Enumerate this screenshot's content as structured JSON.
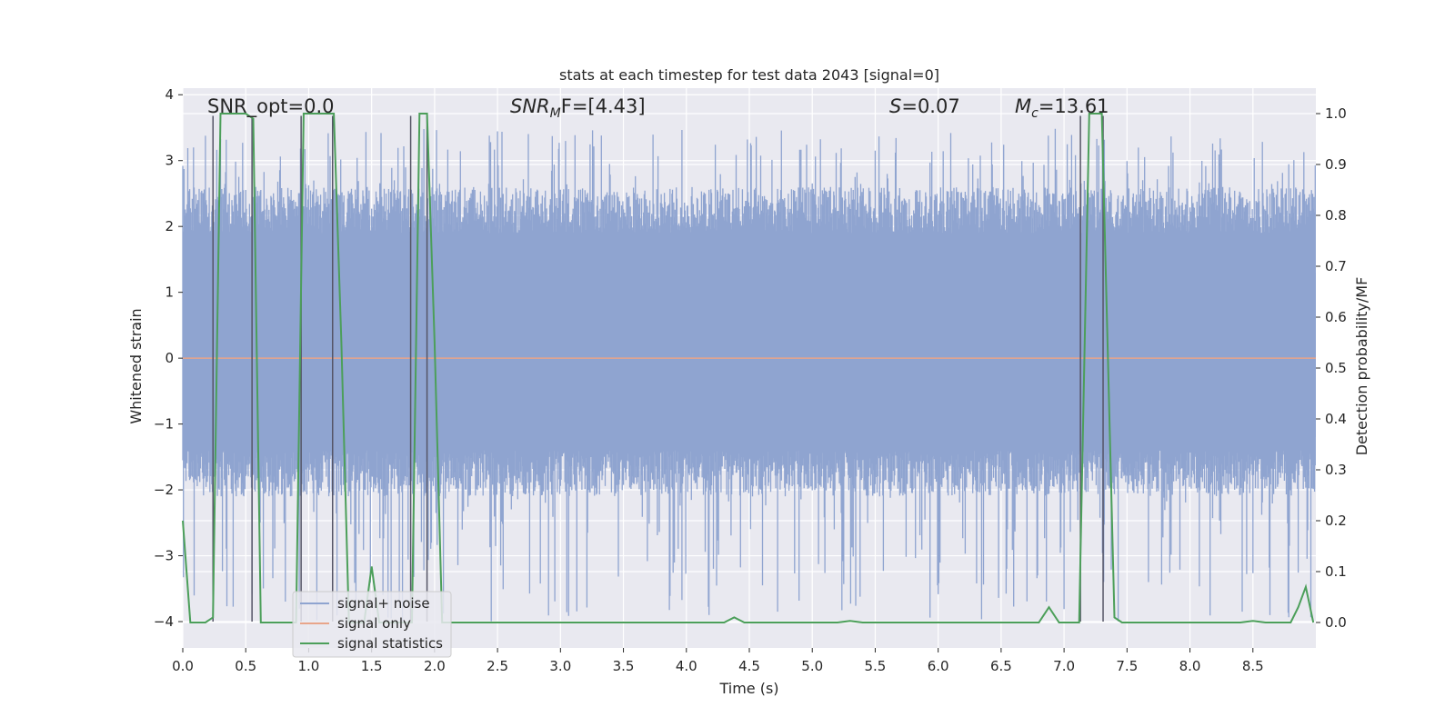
{
  "chart_data": {
    "type": "line",
    "title": "stats at each timestep for test data 2043 [signal=0]",
    "xlabel": "Time (s)",
    "ylabel_left": "Whitened strain",
    "ylabel_right": "Detection probability/MF",
    "xlim": [
      0.0,
      9.0
    ],
    "ylim_left": [
      -4.4,
      4.1
    ],
    "ylim_right": [
      -0.05,
      1.05
    ],
    "x_ticks": [
      "0.0",
      "0.5",
      "1.0",
      "1.5",
      "2.0",
      "2.5",
      "3.0",
      "3.5",
      "4.0",
      "4.5",
      "5.0",
      "5.5",
      "6.0",
      "6.5",
      "7.0",
      "7.5",
      "8.0",
      "8.5"
    ],
    "y_left_ticks": [
      "−4",
      "−3",
      "−2",
      "−1",
      "0",
      "1",
      "2",
      "3",
      "4"
    ],
    "y_right_ticks": [
      "0.0",
      "0.1",
      "0.2",
      "0.3",
      "0.4",
      "0.5",
      "0.6",
      "0.7",
      "0.8",
      "0.9",
      "1.0"
    ],
    "grid": true,
    "annotations": {
      "snr_opt": "SNR_opt=0.0",
      "snr_mf_prefix": "SNR",
      "snr_mf_sub": "M",
      "snr_mf_rest": "F=[4.43]",
      "s_prefix": "S",
      "s_rest": "=0.07",
      "mc_prefix": "M",
      "mc_sub": "c",
      "mc_rest": "=13.61"
    },
    "legend": {
      "position": "lower-left",
      "entries": [
        {
          "label": "signal+ noise",
          "color": "#8fa4d0"
        },
        {
          "label": "signal only",
          "color": "#e8a58a"
        },
        {
          "label": "signal statistics",
          "color": "#4c9f5a"
        }
      ]
    },
    "series": [
      {
        "name": "signal+ noise",
        "axis": "left",
        "style": "noise band",
        "core_range": [
          -1.7,
          2.2
        ],
        "spike_range": [
          -4.0,
          3.5
        ],
        "color": "#8fa4d0"
      },
      {
        "name": "signal only",
        "axis": "left",
        "x": [
          0.0,
          9.0
        ],
        "y": [
          0.0,
          0.0
        ],
        "color": "#e8a58a"
      },
      {
        "name": "signal statistics",
        "axis": "right",
        "color": "#4c9f5a",
        "x": [
          0.0,
          0.06,
          0.18,
          0.24,
          0.3,
          0.5,
          0.56,
          0.62,
          0.9,
          0.96,
          1.02,
          1.2,
          1.26,
          1.32,
          1.44,
          1.5,
          1.56,
          1.68,
          1.82,
          1.88,
          1.94,
          2.0,
          2.06,
          2.2,
          4.3,
          4.38,
          4.46,
          5.2,
          5.3,
          5.4,
          6.8,
          6.88,
          6.96,
          7.12,
          7.2,
          7.3,
          7.4,
          7.46,
          7.6,
          8.4,
          8.5,
          8.6,
          8.8,
          8.86,
          8.92,
          8.98
        ],
        "y": [
          0.2,
          0.0,
          0.0,
          0.01,
          1.0,
          1.0,
          0.99,
          0.0,
          0.0,
          1.0,
          1.0,
          1.0,
          0.55,
          0.0,
          0.0,
          0.11,
          0.0,
          0.0,
          0.0,
          1.0,
          1.0,
          0.55,
          0.0,
          0.0,
          0.0,
          0.01,
          0.0,
          0.0,
          0.003,
          0.0,
          0.0,
          0.03,
          0.0,
          0.0,
          1.0,
          1.0,
          0.01,
          0.0,
          0.0,
          0.0,
          0.003,
          0.0,
          0.0,
          0.03,
          0.07,
          0.0
        ]
      }
    ],
    "vertical_markers": [
      {
        "x": 0.24,
        "y": [
          -4.0,
          3.68
        ]
      },
      {
        "x": 0.55,
        "y": [
          -4.0,
          3.68
        ]
      },
      {
        "x": 0.94,
        "y": [
          -4.0,
          3.68
        ]
      },
      {
        "x": 1.19,
        "y": [
          -4.0,
          3.68
        ]
      },
      {
        "x": 1.81,
        "y": [
          -4.0,
          3.68
        ]
      },
      {
        "x": 1.94,
        "y": [
          -4.0,
          3.68
        ]
      },
      {
        "x": 7.13,
        "y": [
          -4.0,
          3.68
        ]
      },
      {
        "x": 7.31,
        "y": [
          -4.0,
          3.68
        ]
      }
    ]
  }
}
